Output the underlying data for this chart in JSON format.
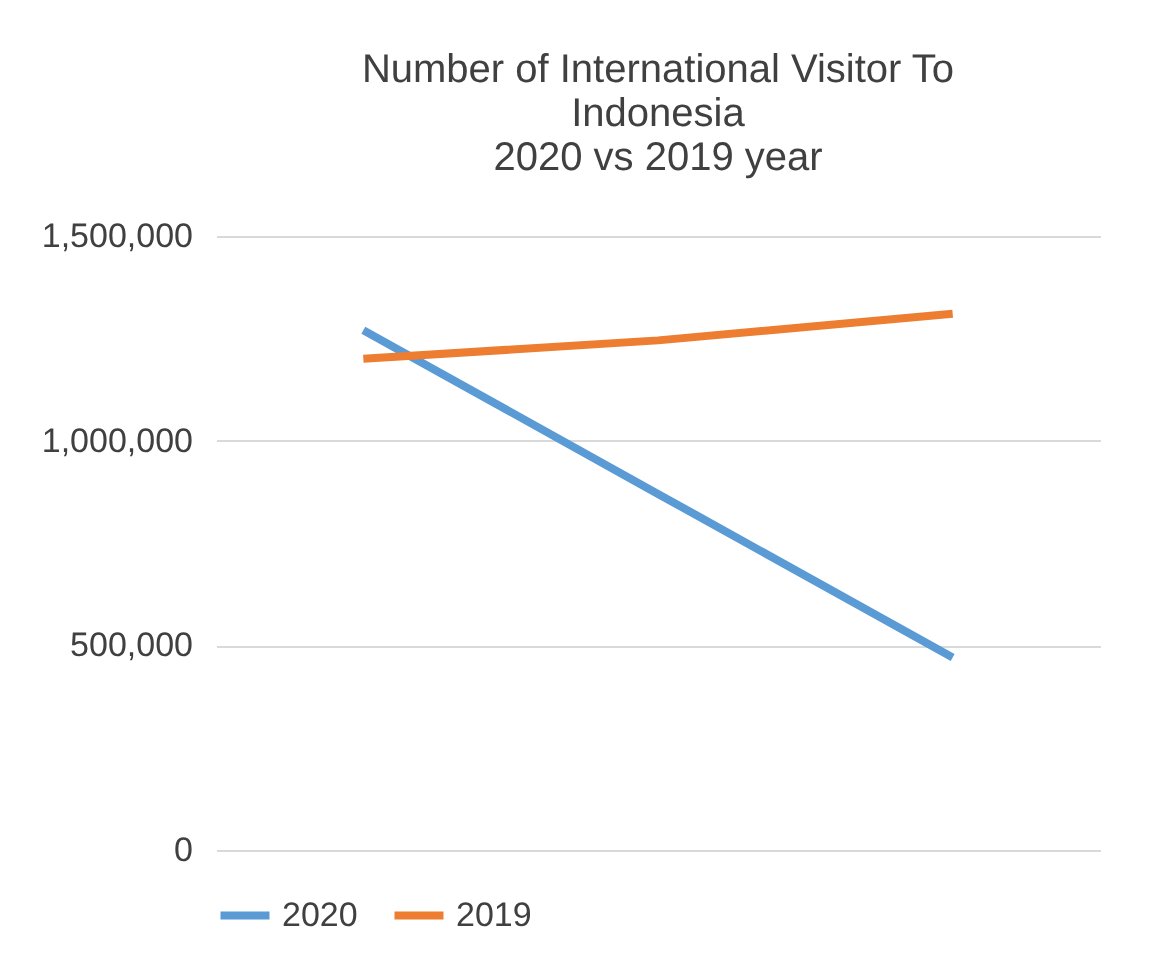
{
  "chart_data": {
    "type": "line",
    "title": "Number of International Visitor To\nIndonesia\n2020 vs 2019 year",
    "categories": [
      null,
      null,
      null
    ],
    "series": [
      {
        "name": "2020",
        "color": "#5b9bd5",
        "values": [
          1270000,
          870000,
          470000
        ]
      },
      {
        "name": "2019",
        "color": "#ed7d31",
        "values": [
          1200000,
          1245000,
          1310000
        ]
      }
    ],
    "ylim": [
      0,
      1500000
    ],
    "yticks": [
      {
        "value": 0,
        "label": "0"
      },
      {
        "value": 500000,
        "label": "500,000"
      },
      {
        "value": 1000000,
        "label": "1,000,000"
      },
      {
        "value": 1500000,
        "label": "1,500,000"
      }
    ],
    "grid": "y",
    "legend": "bottom",
    "marker": "none",
    "line_style": "solid",
    "tick_labels": "y"
  }
}
